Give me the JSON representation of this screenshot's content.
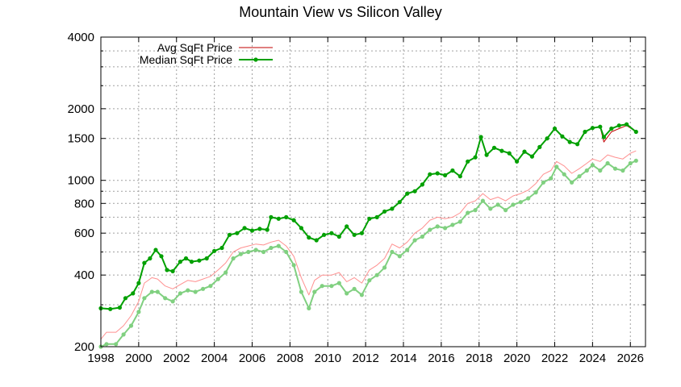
{
  "chart_data": {
    "type": "line",
    "title": "Mountain View vs Silicon Valley",
    "xlabel": "",
    "ylabel": "",
    "xlim": [
      1998,
      2026.8
    ],
    "ylim": [
      200,
      4000
    ],
    "yscale": "log",
    "grid": true,
    "legend_position": "top-left",
    "x_ticks": [
      "1998",
      "2000",
      "2002",
      "2004",
      "2006",
      "2008",
      "2010",
      "2012",
      "2014",
      "2016",
      "2018",
      "2020",
      "2022",
      "2024",
      "2026"
    ],
    "y_ticks": [
      "200",
      "400",
      "600",
      "800",
      "1000",
      "1500",
      "2000",
      "4000"
    ],
    "legend": [
      "Avg SqFt Price",
      "Median SqFt Price"
    ],
    "series": [
      {
        "name": "Avg SqFt Price",
        "region": "Mountain View",
        "color": "#c00000",
        "style": "line",
        "points": [
          [
            1998.0,
            290
          ],
          [
            1998.5,
            288
          ],
          [
            1999.0,
            292
          ],
          [
            1999.3,
            320
          ],
          [
            1999.7,
            335
          ],
          [
            2000.0,
            370
          ],
          [
            2000.3,
            450
          ],
          [
            2000.6,
            470
          ],
          [
            2000.9,
            510
          ],
          [
            2001.2,
            480
          ],
          [
            2001.5,
            420
          ],
          [
            2001.8,
            415
          ],
          [
            2002.2,
            455
          ],
          [
            2002.5,
            470
          ],
          [
            2002.8,
            455
          ],
          [
            2003.2,
            460
          ],
          [
            2003.6,
            470
          ],
          [
            2004.0,
            505
          ],
          [
            2004.4,
            520
          ],
          [
            2004.8,
            590
          ],
          [
            2005.2,
            600
          ],
          [
            2005.6,
            630
          ],
          [
            2006.0,
            615
          ],
          [
            2006.4,
            625
          ],
          [
            2006.8,
            620
          ],
          [
            2007.0,
            700
          ],
          [
            2007.4,
            690
          ],
          [
            2007.8,
            700
          ],
          [
            2008.2,
            680
          ],
          [
            2008.6,
            630
          ],
          [
            2009.0,
            575
          ],
          [
            2009.4,
            560
          ],
          [
            2009.8,
            590
          ],
          [
            2010.2,
            600
          ],
          [
            2010.6,
            580
          ],
          [
            2011.0,
            640
          ],
          [
            2011.4,
            590
          ],
          [
            2011.8,
            600
          ],
          [
            2012.2,
            690
          ],
          [
            2012.6,
            700
          ],
          [
            2013.0,
            740
          ],
          [
            2013.4,
            760
          ],
          [
            2013.8,
            810
          ],
          [
            2014.2,
            880
          ],
          [
            2014.6,
            900
          ],
          [
            2015.0,
            960
          ],
          [
            2015.4,
            1060
          ],
          [
            2015.8,
            1070
          ],
          [
            2016.2,
            1050
          ],
          [
            2016.6,
            1100
          ],
          [
            2017.0,
            1040
          ],
          [
            2017.4,
            1200
          ],
          [
            2017.8,
            1250
          ],
          [
            2018.1,
            1520
          ],
          [
            2018.4,
            1280
          ],
          [
            2018.8,
            1370
          ],
          [
            2019.2,
            1330
          ],
          [
            2019.6,
            1300
          ],
          [
            2020.0,
            1200
          ],
          [
            2020.4,
            1320
          ],
          [
            2020.8,
            1260
          ],
          [
            2021.2,
            1380
          ],
          [
            2021.6,
            1500
          ],
          [
            2022.0,
            1650
          ],
          [
            2022.4,
            1530
          ],
          [
            2022.8,
            1450
          ],
          [
            2023.2,
            1420
          ],
          [
            2023.6,
            1600
          ],
          [
            2024.0,
            1660
          ],
          [
            2024.4,
            1680
          ],
          [
            2024.6,
            1450
          ],
          [
            2025.0,
            1600
          ],
          [
            2025.4,
            1650
          ],
          [
            2025.8,
            1700
          ],
          [
            2026.3,
            1600
          ]
        ]
      },
      {
        "name": "Median SqFt Price",
        "region": "Mountain View",
        "color": "#00a000",
        "style": "linespoints",
        "points": [
          [
            1998.0,
            290
          ],
          [
            1998.5,
            288
          ],
          [
            1999.0,
            292
          ],
          [
            1999.3,
            320
          ],
          [
            1999.7,
            335
          ],
          [
            2000.0,
            370
          ],
          [
            2000.3,
            450
          ],
          [
            2000.6,
            470
          ],
          [
            2000.9,
            510
          ],
          [
            2001.2,
            480
          ],
          [
            2001.5,
            420
          ],
          [
            2001.8,
            415
          ],
          [
            2002.2,
            455
          ],
          [
            2002.5,
            470
          ],
          [
            2002.8,
            455
          ],
          [
            2003.2,
            460
          ],
          [
            2003.6,
            470
          ],
          [
            2004.0,
            505
          ],
          [
            2004.4,
            520
          ],
          [
            2004.8,
            590
          ],
          [
            2005.2,
            600
          ],
          [
            2005.6,
            630
          ],
          [
            2006.0,
            615
          ],
          [
            2006.4,
            625
          ],
          [
            2006.8,
            620
          ],
          [
            2007.0,
            700
          ],
          [
            2007.4,
            690
          ],
          [
            2007.8,
            700
          ],
          [
            2008.2,
            680
          ],
          [
            2008.6,
            630
          ],
          [
            2009.0,
            575
          ],
          [
            2009.4,
            560
          ],
          [
            2009.8,
            590
          ],
          [
            2010.2,
            600
          ],
          [
            2010.6,
            580
          ],
          [
            2011.0,
            640
          ],
          [
            2011.4,
            590
          ],
          [
            2011.8,
            600
          ],
          [
            2012.2,
            690
          ],
          [
            2012.6,
            700
          ],
          [
            2013.0,
            740
          ],
          [
            2013.4,
            760
          ],
          [
            2013.8,
            810
          ],
          [
            2014.2,
            880
          ],
          [
            2014.6,
            900
          ],
          [
            2015.0,
            960
          ],
          [
            2015.4,
            1060
          ],
          [
            2015.8,
            1070
          ],
          [
            2016.2,
            1050
          ],
          [
            2016.6,
            1100
          ],
          [
            2017.0,
            1040
          ],
          [
            2017.4,
            1200
          ],
          [
            2017.8,
            1250
          ],
          [
            2018.1,
            1520
          ],
          [
            2018.4,
            1280
          ],
          [
            2018.8,
            1370
          ],
          [
            2019.2,
            1330
          ],
          [
            2019.6,
            1300
          ],
          [
            2020.0,
            1200
          ],
          [
            2020.4,
            1320
          ],
          [
            2020.8,
            1260
          ],
          [
            2021.2,
            1380
          ],
          [
            2021.6,
            1500
          ],
          [
            2022.0,
            1650
          ],
          [
            2022.4,
            1530
          ],
          [
            2022.8,
            1450
          ],
          [
            2023.2,
            1420
          ],
          [
            2023.6,
            1600
          ],
          [
            2024.0,
            1660
          ],
          [
            2024.4,
            1680
          ],
          [
            2024.6,
            1520
          ],
          [
            2025.0,
            1650
          ],
          [
            2025.4,
            1700
          ],
          [
            2025.8,
            1720
          ],
          [
            2026.3,
            1600
          ]
        ]
      },
      {
        "name": "Avg SqFt Price",
        "region": "Silicon Valley",
        "color": "#ff9090",
        "style": "line",
        "points": [
          [
            1998.0,
            215
          ],
          [
            1998.3,
            230
          ],
          [
            1998.8,
            230
          ],
          [
            1999.2,
            245
          ],
          [
            1999.6,
            270
          ],
          [
            2000.0,
            310
          ],
          [
            2000.3,
            370
          ],
          [
            2000.7,
            390
          ],
          [
            2001.0,
            385
          ],
          [
            2001.4,
            360
          ],
          [
            2001.8,
            350
          ],
          [
            2002.2,
            365
          ],
          [
            2002.6,
            380
          ],
          [
            2003.0,
            375
          ],
          [
            2003.4,
            385
          ],
          [
            2003.8,
            395
          ],
          [
            2004.2,
            420
          ],
          [
            2004.6,
            450
          ],
          [
            2005.0,
            500
          ],
          [
            2005.4,
            520
          ],
          [
            2005.8,
            530
          ],
          [
            2006.2,
            540
          ],
          [
            2006.6,
            535
          ],
          [
            2007.0,
            550
          ],
          [
            2007.4,
            560
          ],
          [
            2007.8,
            530
          ],
          [
            2008.2,
            480
          ],
          [
            2008.6,
            390
          ],
          [
            2009.0,
            330
          ],
          [
            2009.3,
            380
          ],
          [
            2009.7,
            400
          ],
          [
            2010.2,
            400
          ],
          [
            2010.6,
            410
          ],
          [
            2011.0,
            375
          ],
          [
            2011.4,
            390
          ],
          [
            2011.8,
            370
          ],
          [
            2012.2,
            420
          ],
          [
            2012.6,
            440
          ],
          [
            2013.0,
            470
          ],
          [
            2013.4,
            540
          ],
          [
            2013.8,
            520
          ],
          [
            2014.2,
            550
          ],
          [
            2014.6,
            600
          ],
          [
            2015.0,
            630
          ],
          [
            2015.4,
            680
          ],
          [
            2015.8,
            700
          ],
          [
            2016.2,
            690
          ],
          [
            2016.6,
            700
          ],
          [
            2017.0,
            730
          ],
          [
            2017.4,
            800
          ],
          [
            2017.8,
            820
          ],
          [
            2018.2,
            880
          ],
          [
            2018.6,
            830
          ],
          [
            2019.0,
            850
          ],
          [
            2019.4,
            820
          ],
          [
            2019.8,
            860
          ],
          [
            2020.2,
            880
          ],
          [
            2020.6,
            910
          ],
          [
            2021.0,
            970
          ],
          [
            2021.4,
            1060
          ],
          [
            2021.8,
            1100
          ],
          [
            2022.1,
            1200
          ],
          [
            2022.5,
            1150
          ],
          [
            2022.9,
            1070
          ],
          [
            2023.3,
            1120
          ],
          [
            2023.7,
            1180
          ],
          [
            2024.0,
            1230
          ],
          [
            2024.4,
            1200
          ],
          [
            2024.8,
            1280
          ],
          [
            2025.2,
            1250
          ],
          [
            2025.6,
            1230
          ],
          [
            2026.0,
            1300
          ],
          [
            2026.3,
            1330
          ]
        ]
      },
      {
        "name": "Median SqFt Price",
        "region": "Silicon Valley",
        "color": "#80d080",
        "style": "linespoints",
        "points": [
          [
            1998.0,
            200
          ],
          [
            1998.3,
            205
          ],
          [
            1998.8,
            205
          ],
          [
            1999.2,
            225
          ],
          [
            1999.6,
            245
          ],
          [
            2000.0,
            280
          ],
          [
            2000.3,
            320
          ],
          [
            2000.7,
            340
          ],
          [
            2001.0,
            340
          ],
          [
            2001.4,
            320
          ],
          [
            2001.8,
            310
          ],
          [
            2002.2,
            335
          ],
          [
            2002.6,
            345
          ],
          [
            2003.0,
            340
          ],
          [
            2003.4,
            350
          ],
          [
            2003.8,
            360
          ],
          [
            2004.2,
            385
          ],
          [
            2004.6,
            410
          ],
          [
            2005.0,
            470
          ],
          [
            2005.4,
            490
          ],
          [
            2005.8,
            500
          ],
          [
            2006.2,
            510
          ],
          [
            2006.6,
            500
          ],
          [
            2007.0,
            520
          ],
          [
            2007.4,
            530
          ],
          [
            2007.8,
            500
          ],
          [
            2008.2,
            440
          ],
          [
            2008.6,
            340
          ],
          [
            2009.0,
            290
          ],
          [
            2009.3,
            340
          ],
          [
            2009.7,
            360
          ],
          [
            2010.2,
            360
          ],
          [
            2010.6,
            370
          ],
          [
            2011.0,
            335
          ],
          [
            2011.4,
            350
          ],
          [
            2011.8,
            330
          ],
          [
            2012.2,
            380
          ],
          [
            2012.6,
            400
          ],
          [
            2013.0,
            430
          ],
          [
            2013.4,
            500
          ],
          [
            2013.8,
            480
          ],
          [
            2014.2,
            510
          ],
          [
            2014.6,
            560
          ],
          [
            2015.0,
            580
          ],
          [
            2015.4,
            620
          ],
          [
            2015.8,
            640
          ],
          [
            2016.2,
            630
          ],
          [
            2016.6,
            650
          ],
          [
            2017.0,
            670
          ],
          [
            2017.4,
            730
          ],
          [
            2017.8,
            750
          ],
          [
            2018.2,
            820
          ],
          [
            2018.6,
            760
          ],
          [
            2019.0,
            790
          ],
          [
            2019.4,
            750
          ],
          [
            2019.8,
            790
          ],
          [
            2020.2,
            810
          ],
          [
            2020.6,
            840
          ],
          [
            2021.0,
            890
          ],
          [
            2021.4,
            980
          ],
          [
            2021.8,
            1020
          ],
          [
            2022.1,
            1140
          ],
          [
            2022.5,
            1060
          ],
          [
            2022.9,
            980
          ],
          [
            2023.3,
            1040
          ],
          [
            2023.7,
            1100
          ],
          [
            2024.0,
            1160
          ],
          [
            2024.4,
            1100
          ],
          [
            2024.8,
            1180
          ],
          [
            2025.2,
            1120
          ],
          [
            2025.6,
            1100
          ],
          [
            2026.0,
            1180
          ],
          [
            2026.3,
            1210
          ]
        ]
      }
    ]
  }
}
